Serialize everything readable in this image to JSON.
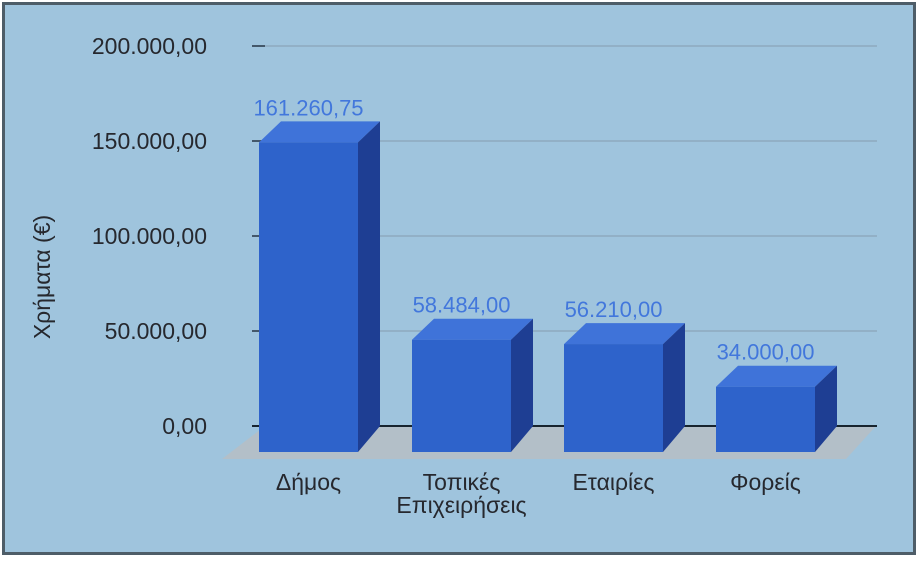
{
  "chart_data": {
    "type": "bar",
    "style": "3d",
    "title": "",
    "xlabel": "",
    "ylabel": "Χρήματα (€)",
    "categories": [
      "Δήμος",
      "Τοπικές Επιχειρήσεις",
      "Εταιρίες",
      "Φορείς"
    ],
    "category_lines": [
      [
        "Δήμος"
      ],
      [
        "Τοπικές",
        "Επιχειρήσεις"
      ],
      [
        "Εταιρίες"
      ],
      [
        "Φορείς"
      ]
    ],
    "values": [
      161260.75,
      58484.0,
      56210.0,
      34000.0
    ],
    "value_labels": [
      "161.260,75",
      "58.484,00",
      "56.210,00",
      "34.000,00"
    ],
    "ylim": [
      0,
      200000
    ],
    "y_ticks": [
      200000,
      150000,
      100000,
      50000,
      0
    ],
    "y_tick_labels": [
      "200.000,00",
      "150.000,00",
      "100.000,00",
      "50.000,00",
      "0,00"
    ],
    "grid": true,
    "legend": false,
    "colors": {
      "background": "#9fc4dd",
      "border": "#4e5d68",
      "floor": "#b3bfc8",
      "gridline": "#8aa6b9",
      "tick_mark": "#44586a",
      "axis_line": "#17242e",
      "text": "#26282e",
      "bar_front": "#2e63cb",
      "bar_top": "#3f73d9",
      "bar_side": "#1e3e93",
      "value_label": "#4277dc"
    }
  }
}
